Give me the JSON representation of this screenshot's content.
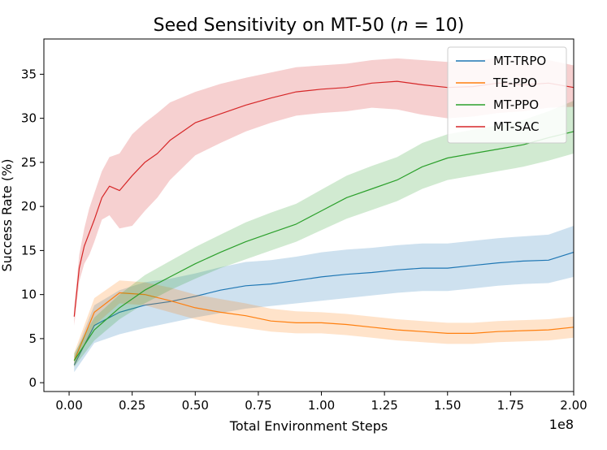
{
  "chart_data": {
    "type": "line",
    "title": {
      "prefix": "Seed Sensitivity on MT-50 (",
      "var": "n",
      "suffix": " = 10)"
    },
    "xlabel": "Total Environment Steps",
    "ylabel": "Success Rate (%)",
    "x_offset_label": "1e8",
    "xlim": [
      -0.1,
      2.0
    ],
    "ylim": [
      -1,
      39
    ],
    "x_ticks": [
      0.0,
      0.25,
      0.5,
      0.75,
      1.0,
      1.25,
      1.5,
      1.75,
      2.0
    ],
    "x_tick_labels": [
      "0.00",
      "0.25",
      "0.50",
      "0.75",
      "1.00",
      "1.25",
      "1.50",
      "1.75",
      "2.00"
    ],
    "y_ticks": [
      0,
      5,
      10,
      15,
      20,
      25,
      30,
      35
    ],
    "y_tick_labels": [
      "0",
      "5",
      "10",
      "15",
      "20",
      "25",
      "30",
      "35"
    ],
    "grid": false,
    "legend_position": "top-right",
    "series": [
      {
        "name": "MT-TRPO",
        "color": "#1f77b4",
        "x": [
          0.02,
          0.1,
          0.2,
          0.3,
          0.4,
          0.5,
          0.6,
          0.7,
          0.8,
          0.9,
          1.0,
          1.1,
          1.2,
          1.3,
          1.4,
          1.5,
          1.6,
          1.7,
          1.8,
          1.9,
          2.0
        ],
        "mean": [
          2.0,
          6.5,
          8.0,
          8.8,
          9.2,
          9.8,
          10.5,
          11.0,
          11.2,
          11.6,
          12.0,
          12.3,
          12.5,
          12.8,
          13.0,
          13.0,
          13.3,
          13.6,
          13.8,
          13.9,
          14.8
        ],
        "lower": [
          1.2,
          4.5,
          5.5,
          6.2,
          6.8,
          7.4,
          7.9,
          8.4,
          8.7,
          9.0,
          9.3,
          9.6,
          9.9,
          10.2,
          10.4,
          10.4,
          10.7,
          11.0,
          11.2,
          11.3,
          12.0
        ],
        "upper": [
          3.0,
          8.8,
          10.5,
          11.4,
          11.8,
          12.4,
          13.1,
          13.7,
          13.9,
          14.3,
          14.8,
          15.1,
          15.3,
          15.6,
          15.8,
          15.8,
          16.1,
          16.4,
          16.6,
          16.8,
          17.8
        ]
      },
      {
        "name": "TE-PPO",
        "color": "#ff7f0e",
        "x": [
          0.02,
          0.1,
          0.2,
          0.3,
          0.4,
          0.5,
          0.6,
          0.7,
          0.8,
          0.9,
          1.0,
          1.1,
          1.2,
          1.3,
          1.4,
          1.5,
          1.6,
          1.7,
          1.8,
          1.9,
          2.0
        ],
        "mean": [
          2.5,
          8.0,
          10.2,
          10.0,
          9.3,
          8.5,
          8.0,
          7.6,
          7.0,
          6.8,
          6.8,
          6.6,
          6.3,
          6.0,
          5.8,
          5.6,
          5.6,
          5.8,
          5.9,
          6.0,
          6.3
        ],
        "lower": [
          1.8,
          6.5,
          9.0,
          8.8,
          8.0,
          7.2,
          6.6,
          6.2,
          5.8,
          5.6,
          5.6,
          5.4,
          5.1,
          4.8,
          4.6,
          4.4,
          4.4,
          4.6,
          4.7,
          4.8,
          5.1
        ],
        "upper": [
          3.4,
          9.6,
          11.6,
          11.4,
          10.8,
          10.0,
          9.5,
          9.0,
          8.4,
          8.1,
          8.0,
          7.8,
          7.5,
          7.2,
          7.0,
          6.8,
          6.8,
          7.0,
          7.1,
          7.2,
          7.5
        ]
      },
      {
        "name": "MT-PPO",
        "color": "#2ca02c",
        "x": [
          0.02,
          0.1,
          0.2,
          0.3,
          0.4,
          0.5,
          0.6,
          0.7,
          0.8,
          0.9,
          1.0,
          1.1,
          1.2,
          1.3,
          1.4,
          1.5,
          1.6,
          1.7,
          1.8,
          1.9,
          2.0
        ],
        "mean": [
          2.5,
          6.0,
          8.5,
          10.5,
          12.0,
          13.5,
          14.8,
          16.0,
          17.0,
          18.0,
          19.5,
          21.0,
          22.0,
          23.0,
          24.5,
          25.5,
          26.0,
          26.5,
          27.0,
          27.8,
          28.5
        ],
        "lower": [
          1.8,
          4.8,
          7.2,
          9.0,
          10.5,
          11.8,
          13.0,
          14.0,
          15.0,
          16.0,
          17.3,
          18.6,
          19.6,
          20.6,
          22.0,
          23.0,
          23.5,
          24.0,
          24.5,
          25.2,
          26.0
        ],
        "upper": [
          3.3,
          7.4,
          10.0,
          12.2,
          13.8,
          15.4,
          16.8,
          18.2,
          19.3,
          20.3,
          21.9,
          23.5,
          24.6,
          25.6,
          27.2,
          28.2,
          28.7,
          29.2,
          29.8,
          30.8,
          32.0
        ]
      },
      {
        "name": "MT-SAC",
        "color": "#d62728",
        "x": [
          0.02,
          0.04,
          0.06,
          0.08,
          0.1,
          0.13,
          0.16,
          0.2,
          0.25,
          0.3,
          0.35,
          0.4,
          0.5,
          0.6,
          0.7,
          0.8,
          0.9,
          1.0,
          1.1,
          1.2,
          1.3,
          1.4,
          1.5,
          1.6,
          1.7,
          1.8,
          1.9,
          2.0
        ],
        "mean": [
          7.5,
          13.0,
          15.5,
          17.0,
          18.5,
          21.0,
          22.3,
          21.8,
          23.5,
          25.0,
          26.0,
          27.5,
          29.5,
          30.5,
          31.5,
          32.3,
          33.0,
          33.3,
          33.5,
          34.0,
          34.2,
          33.8,
          33.5,
          33.6,
          34.0,
          33.8,
          34.0,
          33.5
        ],
        "lower": [
          6.5,
          11.5,
          13.5,
          14.5,
          16.0,
          18.5,
          19.0,
          17.5,
          17.8,
          19.5,
          21.0,
          23.0,
          25.8,
          27.2,
          28.5,
          29.5,
          30.3,
          30.6,
          30.8,
          31.2,
          31.0,
          30.4,
          30.0,
          30.2,
          30.6,
          30.8,
          31.2,
          31.3
        ],
        "upper": [
          8.5,
          14.5,
          17.5,
          19.8,
          21.5,
          24.0,
          25.6,
          26.0,
          28.2,
          29.5,
          30.6,
          31.8,
          33.0,
          33.9,
          34.6,
          35.2,
          35.8,
          36.0,
          36.2,
          36.6,
          36.8,
          36.6,
          36.4,
          36.6,
          36.8,
          36.6,
          36.6,
          36.0
        ]
      }
    ]
  }
}
